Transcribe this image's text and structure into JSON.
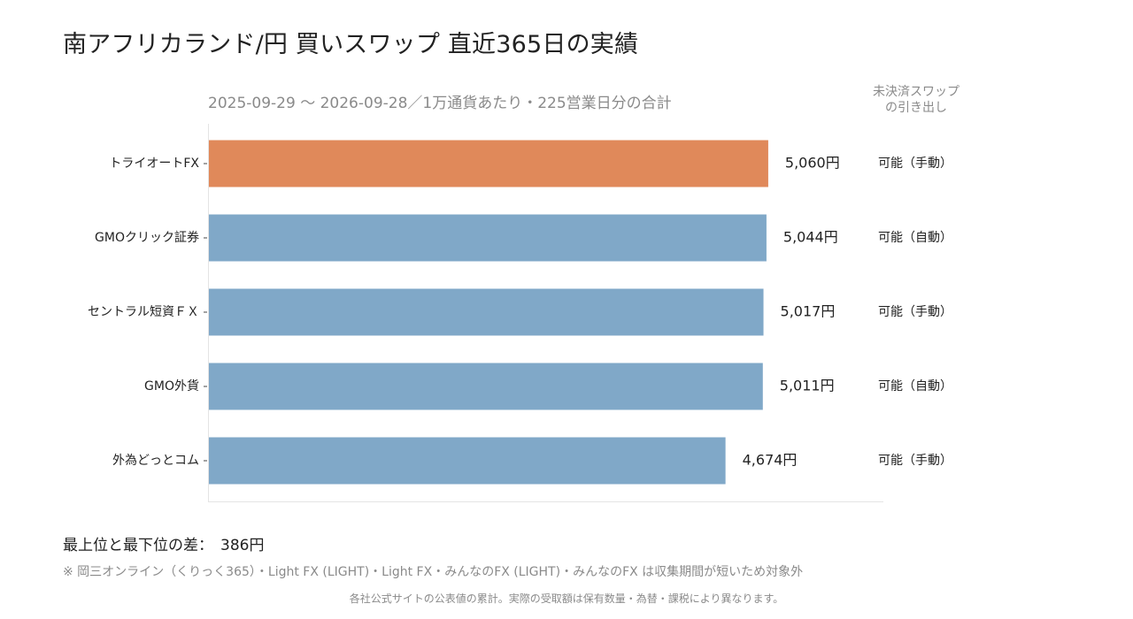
{
  "title": "南アフリカランド/円 買いスワップ 直近365日の実績",
  "chart_data": {
    "type": "bar",
    "orientation": "horizontal",
    "subtitle": "2025-09-29 〜 2026-09-28／1万通貨あたり・225営業日分の合計",
    "categories": [
      "トライオートFX",
      "GMOクリック証券",
      "セントラル短資ＦＸ",
      "GMO外貨",
      "外為どっとコム"
    ],
    "values": [
      5060,
      5044,
      5017,
      5011,
      4674
    ],
    "value_labels": [
      "5,060円",
      "5,044円",
      "5,017円",
      "5,011円",
      "4,674円"
    ],
    "unit": "円",
    "highlight_index": 0,
    "xlim": [
      0,
      6100
    ],
    "grid": false,
    "colors": {
      "highlight": "#e0895a",
      "default": "#80a8c8"
    },
    "side_column": {
      "header": "未決済スワップ\nの引き出し",
      "values": [
        "可能（手動）",
        "可能（自動）",
        "可能（手動）",
        "可能（自動）",
        "可能（手動）"
      ]
    }
  },
  "summary": {
    "label": "最上位と最下位の差：",
    "value": "386円"
  },
  "note": "※ 岡三オンライン（くりっく365）・Light FX (LIGHT)・Light FX・みんなのFX (LIGHT)・みんなのFX は収集期間が短いため対象外",
  "footnote": "各社公式サイトの公表値の累計。実際の受取額は保有数量・為替・課税により異なります。"
}
